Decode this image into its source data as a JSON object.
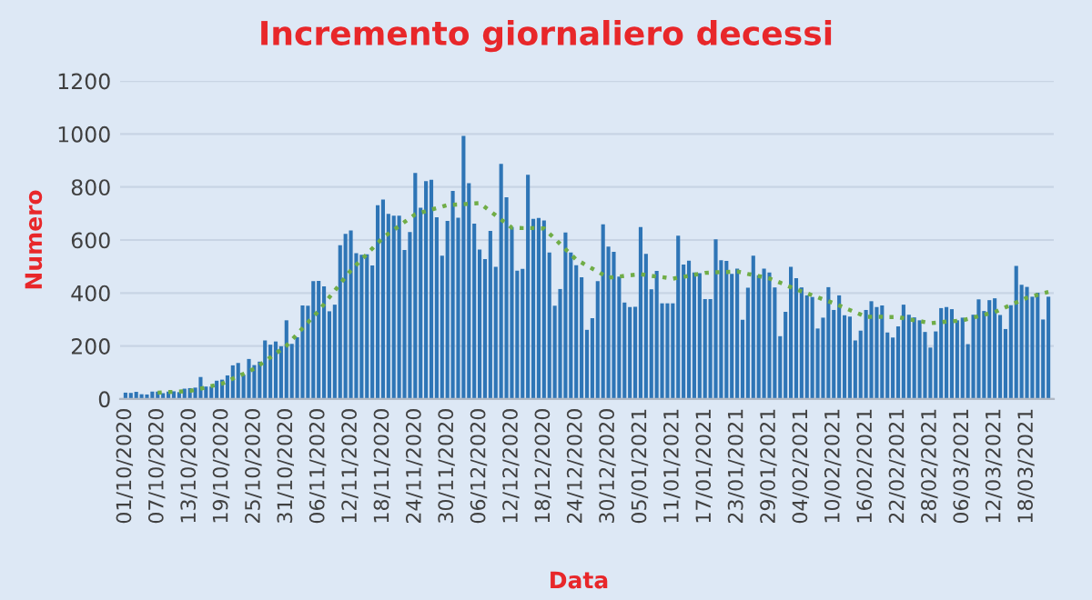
{
  "chart_data": {
    "type": "bar",
    "title": "Incremento giornaliero decessi",
    "xlabel": "Data",
    "ylabel": "Numero",
    "categories": [
      "01/10/2020",
      null,
      null,
      null,
      null,
      null,
      "07/10/2020",
      null,
      null,
      null,
      null,
      null,
      "13/10/2020",
      null,
      null,
      null,
      null,
      null,
      "19/10/2020",
      null,
      null,
      null,
      null,
      null,
      "25/10/2020",
      null,
      null,
      null,
      null,
      null,
      "31/10/2020",
      null,
      null,
      null,
      null,
      null,
      "06/11/2020",
      null,
      null,
      null,
      null,
      null,
      "12/11/2020",
      null,
      null,
      null,
      null,
      null,
      "18/11/2020",
      null,
      null,
      null,
      null,
      null,
      "24/11/2020",
      null,
      null,
      null,
      null,
      null,
      "30/11/2020",
      null,
      null,
      null,
      null,
      null,
      "06/12/2020",
      null,
      null,
      null,
      null,
      null,
      "12/12/2020",
      null,
      null,
      null,
      null,
      null,
      "18/12/2020",
      null,
      null,
      null,
      null,
      null,
      "24/12/2020",
      null,
      null,
      null,
      null,
      null,
      "30/12/2020",
      null,
      null,
      null,
      null,
      null,
      "05/01/2021",
      null,
      null,
      null,
      null,
      null,
      "11/01/2021",
      null,
      null,
      null,
      null,
      null,
      "17/01/2021",
      null,
      null,
      null,
      null,
      null,
      "23/01/2021",
      null,
      null,
      null,
      null,
      null,
      "29/01/2021",
      null,
      null,
      null,
      null,
      null,
      "04/02/2021",
      null,
      null,
      null,
      null,
      null,
      "10/02/2021",
      null,
      null,
      null,
      null,
      null,
      "16/02/2021",
      null,
      null,
      null,
      null,
      null,
      "22/02/2021",
      null,
      null,
      null,
      null,
      null,
      "28/02/2021",
      null,
      null,
      null,
      null,
      null,
      "06/03/2021",
      null,
      null,
      null,
      null,
      null,
      "12/03/2021",
      null,
      null,
      null,
      null,
      null,
      "18/03/2021",
      null,
      null,
      null,
      null
    ],
    "series": [
      {
        "color": "#2e75b6",
        "values": [
          24,
          23,
          27,
          18,
          17,
          28,
          28,
          22,
          28,
          29,
          26,
          39,
          41,
          43,
          83,
          47,
          47,
          69,
          73,
          89,
          127,
          136,
          91,
          151,
          128,
          141,
          221,
          205,
          217,
          199,
          297,
          208,
          233,
          353,
          352,
          445,
          446,
          425,
          331,
          356,
          580,
          623,
          636,
          550,
          544,
          546,
          504,
          731,
          753,
          699,
          692,
          692,
          562,
          630,
          853,
          722,
          822,
          827,
          686,
          541,
          672,
          785,
          684,
          993,
          814,
          662,
          564,
          528,
          634,
          499,
          887,
          761,
          649,
          484,
          491,
          846,
          680,
          683,
          674,
          553,
          352,
          415,
          628,
          553,
          505,
          459,
          261,
          305,
          445,
          659,
          575,
          555,
          462,
          364,
          347,
          348,
          649,
          548,
          414,
          483,
          361,
          361,
          361,
          616,
          507,
          522,
          477,
          475,
          377,
          377,
          603,
          524,
          521,
          472,
          492,
          299,
          420,
          541,
          467,
          492,
          477,
          421,
          237,
          329,
          499,
          456,
          421,
          391,
          385,
          266,
          307,
          422,
          336,
          391,
          316,
          311,
          221,
          258,
          336,
          369,
          347,
          353,
          251,
          232,
          274,
          356,
          318,
          308,
          297,
          253,
          194,
          255,
          343,
          347,
          339,
          297,
          307,
          207,
          318,
          376,
          332,
          373,
          380,
          317,
          264,
          354,
          502,
          431,
          423,
          386,
          401,
          300,
          386
        ]
      },
      {
        "type": "line",
        "color": "#70ad47",
        "line_style": "dotted",
        "values": [
          null,
          null,
          null,
          null,
          null,
          null,
          24,
          25,
          26,
          27,
          28,
          29,
          30,
          35,
          39,
          44,
          49,
          53,
          58,
          67,
          77,
          86,
          95,
          105,
          114,
          128,
          143,
          157,
          172,
          186,
          201,
          223,
          245,
          267,
          289,
          311,
          333,
          358,
          384,
          409,
          434,
          460,
          485,
          506,
          526,
          547,
          568,
          588,
          609,
          624,
          638,
          653,
          668,
          682,
          697,
          703,
          709,
          715,
          720,
          726,
          732,
          733,
          734,
          735,
          737,
          738,
          739,
          724,
          708,
          693,
          677,
          662,
          646,
          646,
          645,
          645,
          645,
          644,
          644,
          624,
          605,
          585,
          565,
          546,
          526,
          515,
          503,
          492,
          481,
          469,
          458,
          460,
          462,
          465,
          467,
          469,
          471,
          468,
          465,
          462,
          460,
          457,
          454,
          458,
          461,
          465,
          469,
          472,
          476,
          477,
          478,
          479,
          479,
          480,
          481,
          477,
          472,
          468,
          464,
          459,
          455,
          447,
          439,
          431,
          422,
          414,
          406,
          399,
          391,
          384,
          376,
          369,
          361,
          353,
          344,
          336,
          327,
          319,
          310,
          310,
          310,
          310,
          309,
          309,
          309,
          305,
          301,
          297,
          294,
          290,
          286,
          288,
          290,
          292,
          293,
          295,
          297,
          302,
          307,
          313,
          318,
          323,
          328,
          337,
          346,
          355,
          364,
          373,
          382,
          388,
          393,
          399,
          404
        ]
      }
    ],
    "ylim": [
      0,
      1200
    ],
    "yticks": [
      0,
      200,
      400,
      600,
      800,
      1000,
      1200
    ],
    "grid": "y",
    "legend": false,
    "marker": "none"
  }
}
